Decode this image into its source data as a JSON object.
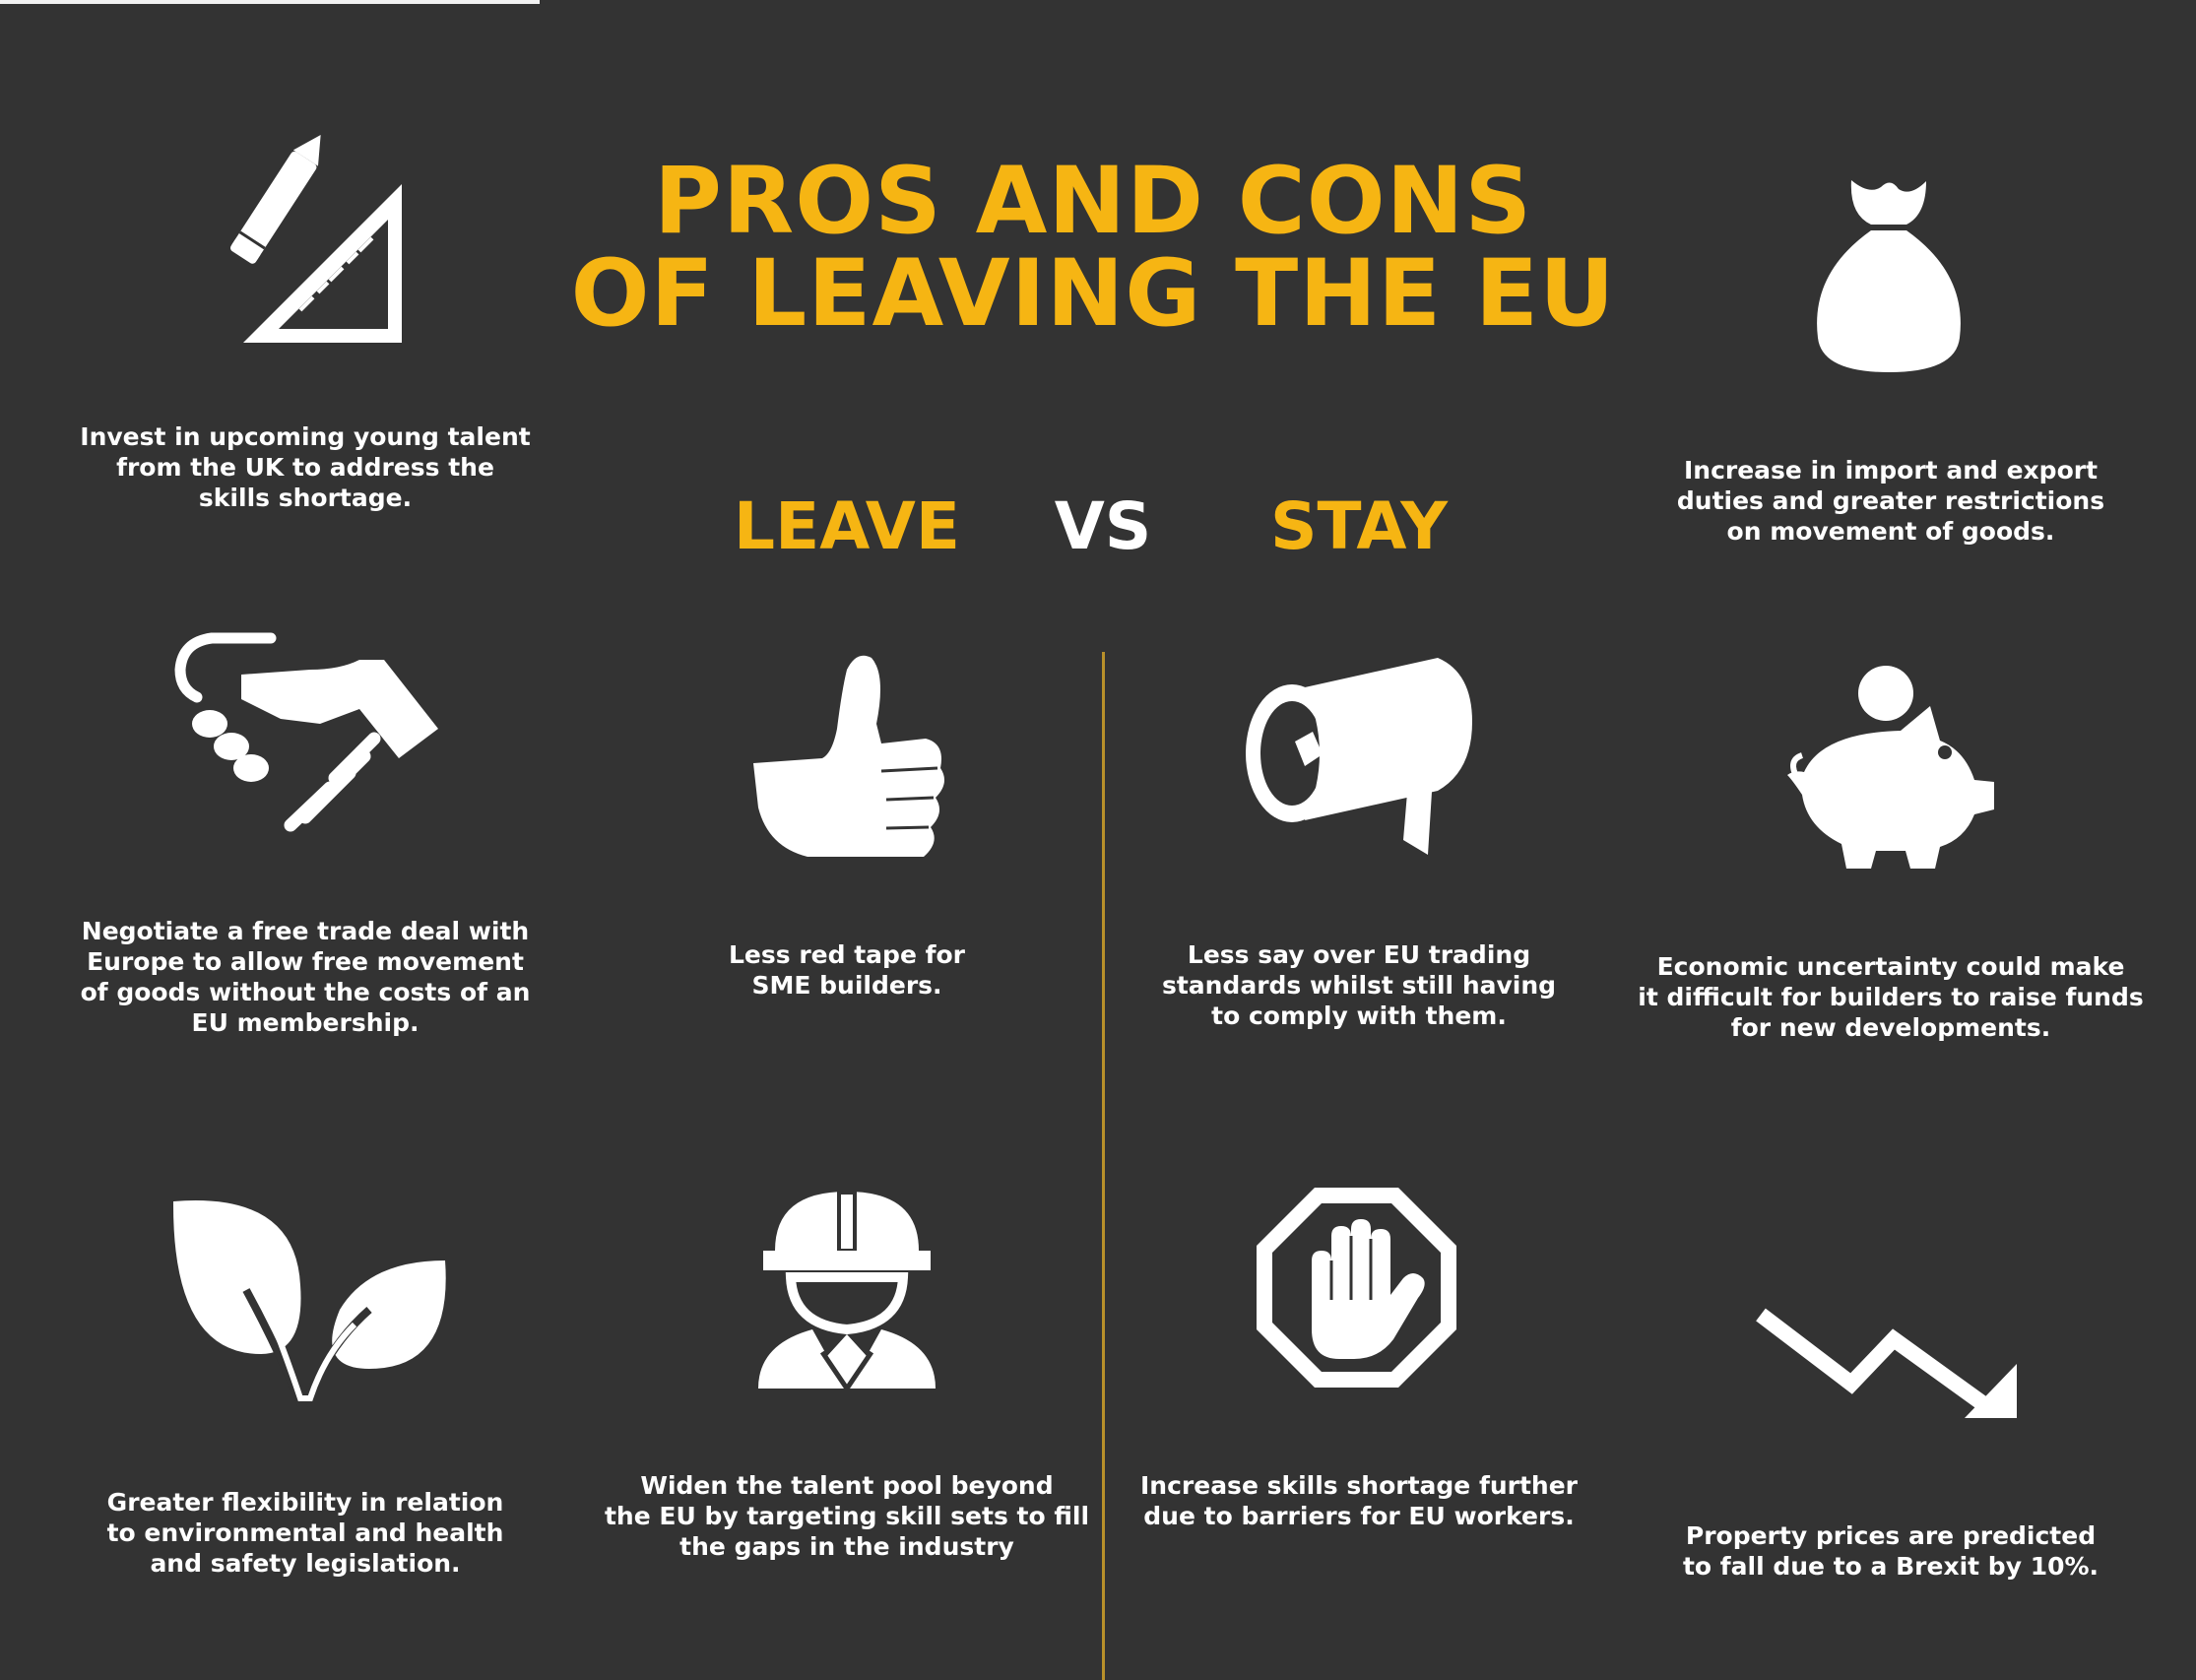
{
  "title": {
    "line1": "PROS AND CONS",
    "line2": "OF LEAVING THE EU"
  },
  "headings": {
    "leave": "LEAVE",
    "vs": "VS",
    "stay": "STAY"
  },
  "colors": {
    "background": "#333333",
    "accent": "#f6b513",
    "text": "#ffffff",
    "divider": "#b8902a"
  },
  "items": {
    "skills": {
      "icon": "pencil-and-set-square-icon",
      "lines": [
        "Invest in upcoming young talent",
        "from the UK to address the",
        "skills shortage."
      ]
    },
    "trade_deal": {
      "icon": "handshake-icon",
      "lines": [
        "Negotiate a free trade deal with",
        "Europe to allow free movement",
        "of goods without the costs of an",
        "EU membership."
      ]
    },
    "flexibility": {
      "icon": "leaves-icon",
      "lines": [
        "Greater flexibility in relation",
        "to environmental and health",
        "and safety legislation."
      ]
    },
    "red_tape": {
      "icon": "thumbs-up-icon",
      "lines": [
        "Less red tape for",
        "SME builders."
      ]
    },
    "talent_pool": {
      "icon": "construction-worker-icon",
      "lines": [
        "Widen the talent pool beyond",
        "the EU by targeting skill sets to fill",
        "the gaps in the industry"
      ]
    },
    "trading_standards": {
      "icon": "megaphone-icon",
      "lines": [
        "Less say over EU trading",
        "standards whilst still having",
        "to comply with them."
      ]
    },
    "skills_shortage": {
      "icon": "stop-hand-icon",
      "lines": [
        "Increase skills shortage further",
        "due to barriers for EU workers."
      ]
    },
    "duties": {
      "icon": "money-bag-icon",
      "lines": [
        "Increase in import and export",
        "duties and greater restrictions",
        "on movement of goods."
      ]
    },
    "uncertainty": {
      "icon": "piggy-bank-icon",
      "lines": [
        "Economic uncertainty could make",
        "it difficult for builders to raise funds",
        "for new developments."
      ]
    },
    "property": {
      "icon": "trend-down-arrow-icon",
      "lines": [
        "Property prices are predicted",
        "to fall due to a Brexit by 10%."
      ]
    }
  }
}
